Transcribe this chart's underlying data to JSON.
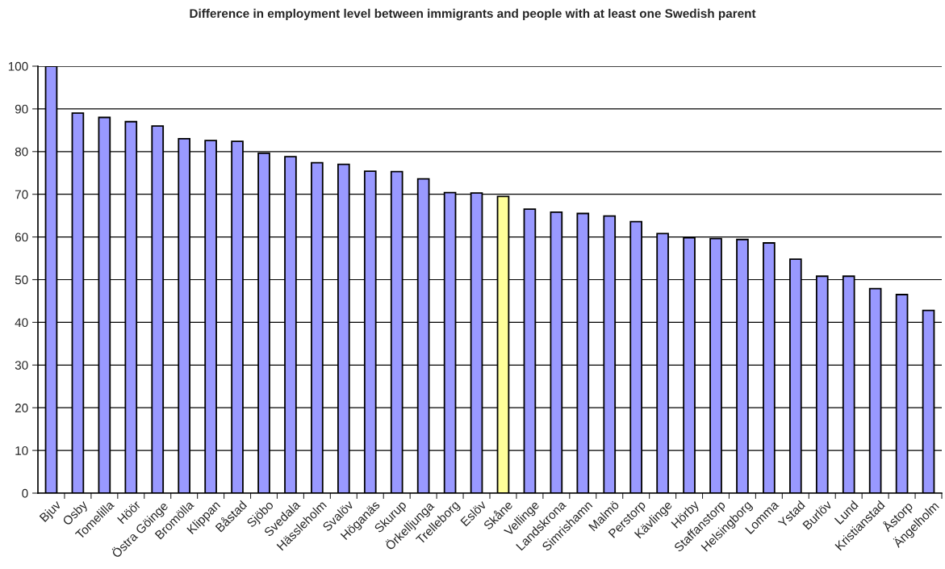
{
  "chart_data": {
    "type": "bar",
    "title": "Difference in employment level between immigrants and people with at least one Swedish parent",
    "categories": [
      "Bjuv",
      "Osby",
      "Tomelilla",
      "Höör",
      "Östra Göinge",
      "Bromölla",
      "Klippan",
      "Båstad",
      "Sjöbo",
      "Svedala",
      "Hässleholm",
      "Svalöv",
      "Höganäs",
      "Skurup",
      "Örkelljunga",
      "Trelleborg",
      "Eslöv",
      "Skåne",
      "Vellinge",
      "Landskrona",
      "Simrishamn",
      "Malmö",
      "Perstorp",
      "Kävlinge",
      "Hörby",
      "Staffanstorp",
      "Helsingborg",
      "Lomma",
      "Ystad",
      "Burlöv",
      "Lund",
      "Kristianstad",
      "Åstorp",
      "Ängelholm"
    ],
    "values": [
      100,
      89,
      88,
      87,
      86,
      83,
      82.6,
      82.4,
      79.6,
      78.8,
      77.4,
      77,
      75.4,
      75.3,
      73.6,
      70.4,
      70.3,
      69.5,
      66.5,
      65.8,
      65.5,
      64.9,
      63.6,
      60.8,
      59.8,
      59.6,
      59.4,
      58.6,
      54.8,
      50.8,
      50.8,
      47.9,
      46.5,
      42.8
    ],
    "colors": [
      "#9999ff",
      "#9999ff",
      "#9999ff",
      "#9999ff",
      "#9999ff",
      "#9999ff",
      "#9999ff",
      "#9999ff",
      "#9999ff",
      "#9999ff",
      "#9999ff",
      "#9999ff",
      "#9999ff",
      "#9999ff",
      "#9999ff",
      "#9999ff",
      "#9999ff",
      "#ffff99",
      "#9999ff",
      "#9999ff",
      "#9999ff",
      "#9999ff",
      "#9999ff",
      "#9999ff",
      "#9999ff",
      "#9999ff",
      "#9999ff",
      "#9999ff",
      "#9999ff",
      "#9999ff",
      "#9999ff",
      "#9999ff",
      "#9999ff",
      "#9999ff"
    ],
    "ylim": [
      0,
      100
    ],
    "yticks": [
      0,
      10,
      20,
      30,
      40,
      50,
      60,
      70,
      80,
      90,
      100
    ],
    "grid": "y"
  }
}
